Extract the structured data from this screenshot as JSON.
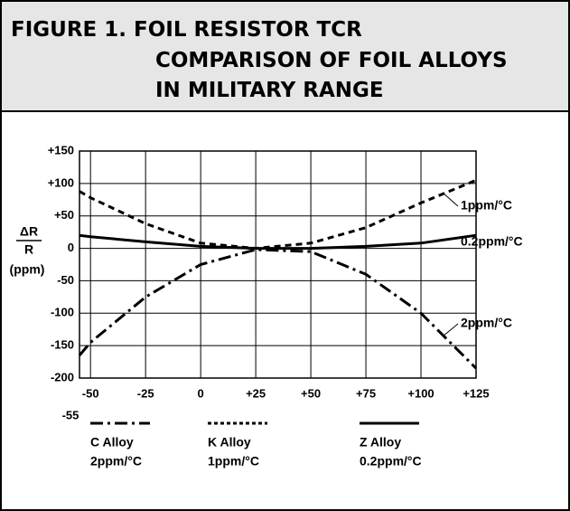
{
  "chart_data": {
    "type": "line",
    "title": [
      "FIGURE 1. FOIL RESISTOR TCR",
      "COMPARISON OF FOIL ALLOYS",
      "IN MILITARY RANGE"
    ],
    "y_label": {
      "numerator": "ΔR",
      "denominator": "R",
      "unit": "(ppm)"
    },
    "x": [
      -55,
      -50,
      -25,
      0,
      25,
      50,
      75,
      100,
      125
    ],
    "series": [
      {
        "name": "C Alloy",
        "tcr": "2ppm/°C",
        "color": "#000000",
        "dash": "dash-dot",
        "values": [
          -165,
          -145,
          -75,
          -25,
          -2,
          -5,
          -40,
          -100,
          -185
        ]
      },
      {
        "name": "K Alloy",
        "tcr": "1ppm/°C",
        "color": "#000000",
        "dash": "dashed",
        "values": [
          88,
          78,
          38,
          8,
          0,
          8,
          32,
          70,
          105
        ]
      },
      {
        "name": "Z Alloy",
        "tcr": "0.2ppm/°C",
        "color": "#000000",
        "dash": "solid",
        "values": [
          20,
          18,
          10,
          3,
          0,
          0,
          3,
          8,
          20
        ]
      }
    ],
    "xlim": [
      -55,
      125
    ],
    "xticks": [
      -55,
      -50,
      -25,
      0,
      {
        "value": 25,
        "label": "+25"
      },
      {
        "value": 50,
        "label": "+50"
      },
      {
        "value": 75,
        "label": "+75"
      },
      {
        "value": 100,
        "label": "+100"
      },
      {
        "value": 125,
        "label": "+125"
      }
    ],
    "ylim": [
      -200,
      150
    ],
    "yticks": [
      {
        "value": 150,
        "label": "+150"
      },
      {
        "value": 100,
        "label": "+100"
      },
      {
        "value": 50,
        "label": "+50"
      },
      0,
      -50,
      -100,
      -150,
      -200
    ],
    "grid": true
  }
}
